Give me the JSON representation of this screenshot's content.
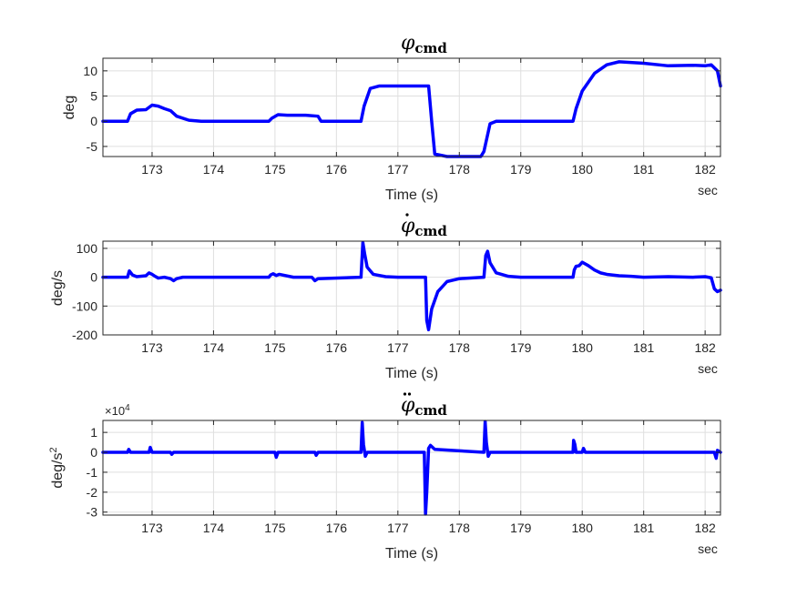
{
  "chart_data": [
    {
      "type": "line",
      "title": {
        "symbol": "φ",
        "dots": 0,
        "subscript": "cmd"
      },
      "xlabel": "Time (s)",
      "x_unit": "sec",
      "ylabel": "deg",
      "ylabel_sup": "",
      "exponent_label": "",
      "xlim": [
        172.2,
        182.25
      ],
      "ylim": [
        -7,
        12.5
      ],
      "xticks": [
        173,
        174,
        175,
        176,
        177,
        178,
        179,
        180,
        181,
        182
      ],
      "yticks": [
        -5,
        0,
        5,
        10
      ],
      "grid": true,
      "color": "#0000ff",
      "series": [
        {
          "x": [
            172.2,
            172.6,
            172.65,
            172.75,
            172.9,
            173.0,
            173.1,
            173.2,
            173.3,
            173.4,
            173.6,
            173.8,
            174.2,
            174.9,
            174.95,
            175.05,
            175.2,
            175.5,
            175.7,
            175.75,
            176.4,
            176.45,
            176.55,
            176.7,
            177.5,
            177.55,
            177.6,
            177.8,
            178.35,
            178.4,
            178.5,
            178.6,
            179.0,
            179.85,
            179.9,
            180.0,
            180.2,
            180.4,
            180.6,
            181.0,
            181.4,
            181.8,
            182.0,
            182.1,
            182.2,
            182.25
          ],
          "y": [
            0,
            0,
            1.5,
            2.2,
            2.3,
            3.2,
            3.0,
            2.5,
            2.1,
            1.0,
            0.2,
            0,
            0,
            0,
            0.6,
            1.3,
            1.2,
            1.2,
            1.0,
            0,
            0,
            3.0,
            6.5,
            7.0,
            7.0,
            0,
            -6.5,
            -7.0,
            -7.0,
            -6.0,
            -0.5,
            0,
            0,
            0,
            2.5,
            6.0,
            9.5,
            11.2,
            11.8,
            11.5,
            11.0,
            11.1,
            11.0,
            11.2,
            10.0,
            7.0
          ]
        }
      ]
    },
    {
      "type": "line",
      "title": {
        "symbol": "φ",
        "dots": 1,
        "subscript": "cmd"
      },
      "xlabel": "Time (s)",
      "x_unit": "sec",
      "ylabel": "deg/s",
      "ylabel_sup": "",
      "exponent_label": "",
      "xlim": [
        172.2,
        182.25
      ],
      "ylim": [
        -200,
        125
      ],
      "xticks": [
        173,
        174,
        175,
        176,
        177,
        178,
        179,
        180,
        181,
        182
      ],
      "yticks": [
        -200,
        -100,
        0,
        100
      ],
      "grid": true,
      "color": "#0000ff",
      "series": [
        {
          "x": [
            172.2,
            172.6,
            172.63,
            172.68,
            172.75,
            172.9,
            172.95,
            173.0,
            173.05,
            173.1,
            173.2,
            173.3,
            173.35,
            173.4,
            173.5,
            173.6,
            174.5,
            174.9,
            174.93,
            174.97,
            175.02,
            175.07,
            175.3,
            175.6,
            175.65,
            175.7,
            176.4,
            176.43,
            176.46,
            176.5,
            176.6,
            176.8,
            177.0,
            177.45,
            177.47,
            177.5,
            177.55,
            177.65,
            177.8,
            178.0,
            178.4,
            178.43,
            178.46,
            178.5,
            178.6,
            178.8,
            179.0,
            179.85,
            179.87,
            179.9,
            179.95,
            180.0,
            180.1,
            180.2,
            180.3,
            180.4,
            180.6,
            180.8,
            181.0,
            181.4,
            181.8,
            182.0,
            182.1,
            182.15,
            182.2,
            182.25
          ],
          "y": [
            0,
            0,
            22,
            8,
            2,
            5,
            15,
            10,
            3,
            -3,
            0,
            -5,
            -12,
            -5,
            0,
            0,
            0,
            0,
            8,
            12,
            6,
            10,
            0,
            0,
            -12,
            -5,
            0,
            120,
            80,
            35,
            10,
            2,
            0,
            0,
            -150,
            -182,
            -110,
            -50,
            -15,
            -5,
            0,
            75,
            90,
            50,
            15,
            3,
            0,
            0,
            25,
            38,
            40,
            52,
            40,
            25,
            15,
            10,
            5,
            3,
            0,
            2,
            0,
            2,
            -2,
            -40,
            -50,
            -45
          ]
        }
      ]
    },
    {
      "type": "line",
      "title": {
        "symbol": "φ",
        "dots": 2,
        "subscript": "cmd"
      },
      "xlabel": "Time (s)",
      "x_unit": "sec",
      "ylabel": "deg/s",
      "ylabel_sup": "2",
      "exponent_label": "×10",
      "exponent_power": "4",
      "xlim": [
        172.2,
        182.25
      ],
      "ylim": [
        -3.15,
        1.6
      ],
      "ytick_values": [
        -3,
        -2,
        -1,
        0,
        1
      ],
      "xticks": [
        173,
        174,
        175,
        176,
        177,
        178,
        179,
        180,
        181,
        182
      ],
      "yticks": [
        -3,
        -2,
        -1,
        0,
        1
      ],
      "grid": true,
      "color": "#0000ff",
      "series": [
        {
          "x": [
            172.2,
            172.6,
            172.62,
            172.65,
            172.95,
            172.97,
            173.0,
            173.3,
            173.32,
            173.35,
            174.5,
            175.0,
            175.02,
            175.05,
            175.65,
            175.67,
            175.7,
            176.4,
            176.42,
            176.44,
            176.47,
            176.5,
            177.43,
            177.45,
            177.47,
            177.5,
            177.53,
            177.6,
            178.4,
            178.42,
            178.44,
            178.47,
            178.5,
            179.85,
            179.86,
            179.88,
            179.9,
            180.0,
            180.02,
            180.05,
            181.0,
            182.15,
            182.18,
            182.2,
            182.25
          ],
          "y": [
            0,
            0,
            0.15,
            0,
            0,
            0.25,
            0,
            0,
            -0.1,
            0,
            0,
            0,
            -0.25,
            0,
            0,
            -0.15,
            0,
            0,
            1.5,
            0.4,
            -0.2,
            0,
            0,
            -3.1,
            -2.0,
            0.2,
            0.35,
            0.15,
            0,
            1.55,
            0.5,
            -0.2,
            0,
            0,
            0.6,
            0.4,
            0,
            0,
            0.2,
            0,
            0,
            0,
            -0.3,
            0.1,
            0
          ]
        }
      ]
    }
  ]
}
